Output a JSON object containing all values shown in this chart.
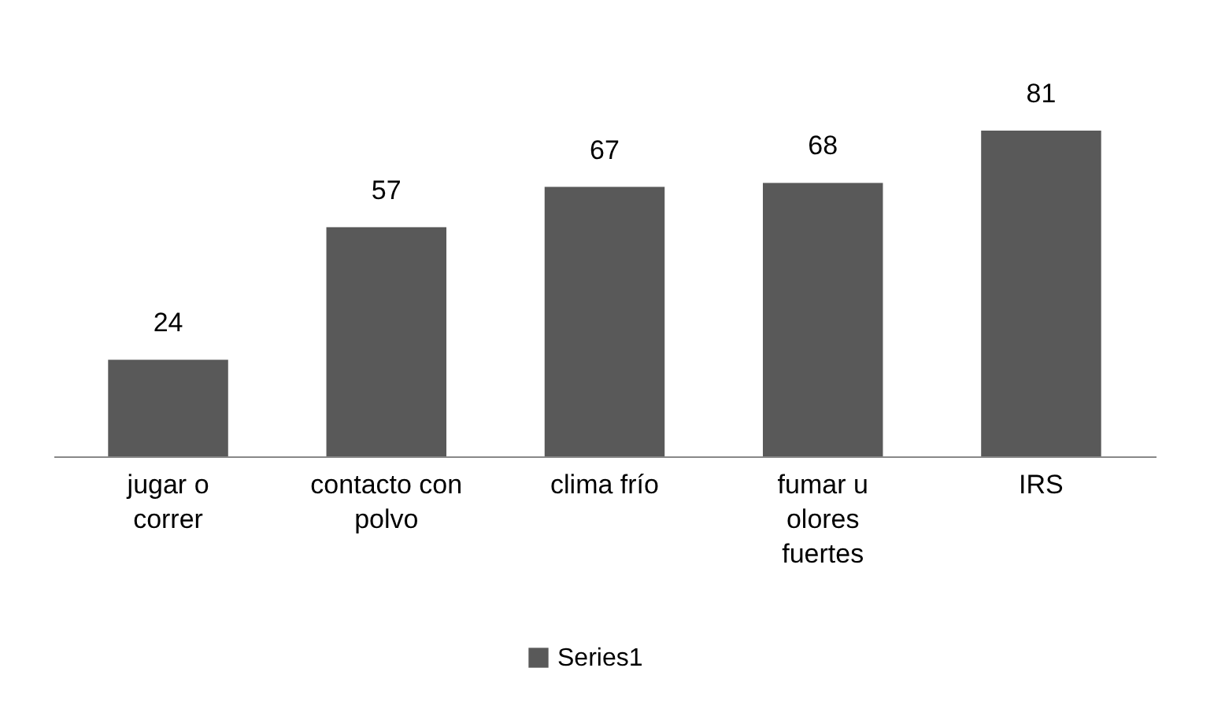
{
  "chart_data": {
    "type": "bar",
    "categories": [
      "jugar o correr",
      "contacto con polvo",
      "clima frío",
      "fumar u olores fuertes",
      "IRS"
    ],
    "series": [
      {
        "name": "Series1",
        "color": "#595959",
        "values": [
          24,
          57,
          67,
          68,
          81
        ]
      }
    ],
    "data_labels": true,
    "legend": "bottom"
  }
}
